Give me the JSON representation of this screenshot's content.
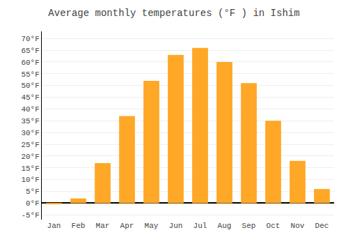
{
  "chart_data": {
    "type": "bar",
    "title": "Average monthly temperatures (°F ) in Ishim",
    "categories": [
      "Jan",
      "Feb",
      "Mar",
      "Apr",
      "May",
      "Jun",
      "Jul",
      "Aug",
      "Sep",
      "Oct",
      "Nov",
      "Dec"
    ],
    "values": [
      -0.5,
      2,
      17,
      37,
      52,
      63,
      66,
      60,
      51,
      35,
      18,
      6
    ],
    "color": "#FFA726",
    "ylim": [
      -7,
      73
    ],
    "yticks": [
      {
        "value": -5,
        "label": "-5°F"
      },
      {
        "value": 0,
        "label": "0°F"
      },
      {
        "value": 5,
        "label": "5°F"
      },
      {
        "value": 10,
        "label": "10°F"
      },
      {
        "value": 15,
        "label": "15°F"
      },
      {
        "value": 20,
        "label": "20°F"
      },
      {
        "value": 25,
        "label": "25°F"
      },
      {
        "value": 30,
        "label": "30°F"
      },
      {
        "value": 35,
        "label": "35°F"
      },
      {
        "value": 40,
        "label": "40°F"
      },
      {
        "value": 45,
        "label": "45°F"
      },
      {
        "value": 50,
        "label": "50°F"
      },
      {
        "value": 55,
        "label": "55°F"
      },
      {
        "value": 60,
        "label": "60°F"
      },
      {
        "value": 65,
        "label": "65°F"
      },
      {
        "value": 70,
        "label": "70°F"
      }
    ],
    "grid": true
  }
}
